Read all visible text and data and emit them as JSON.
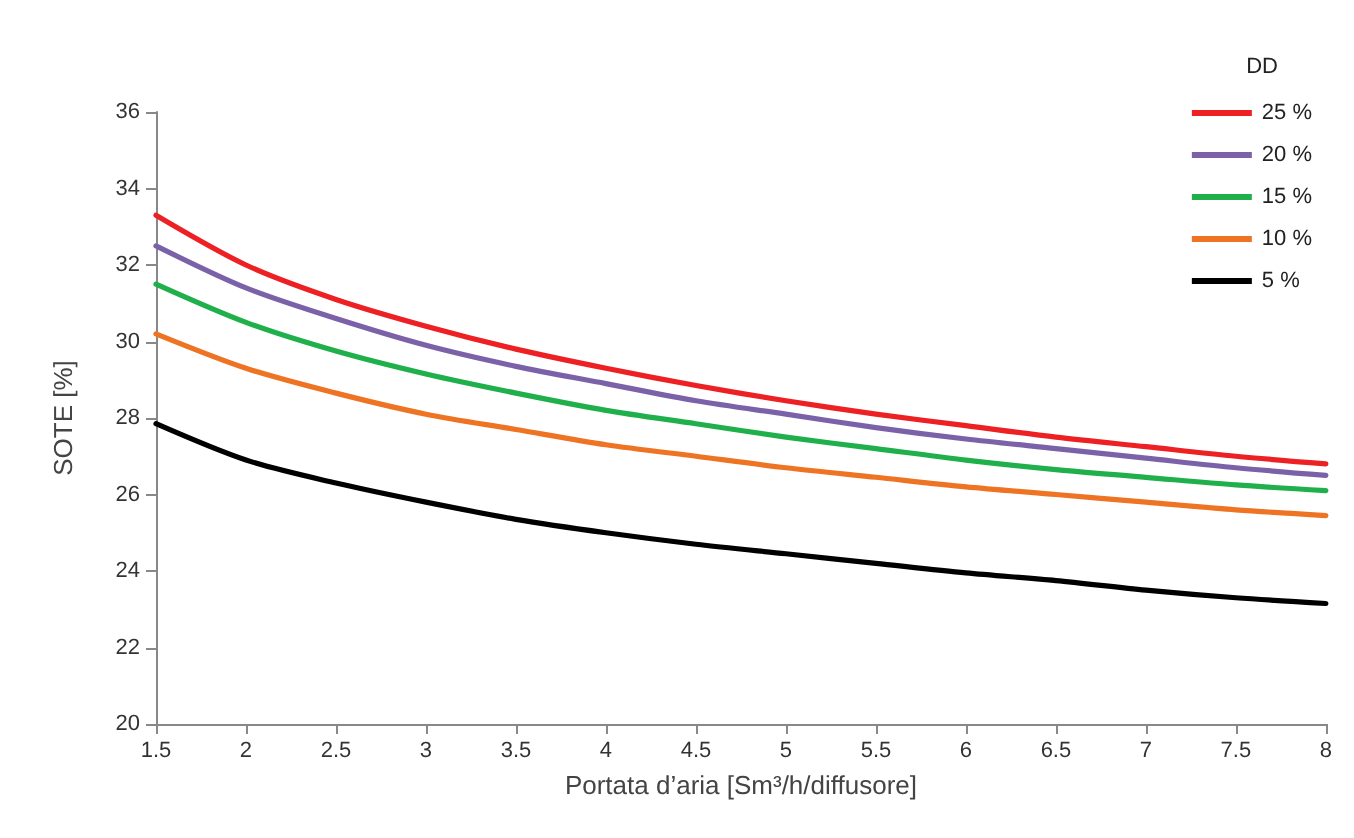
{
  "chart_data": {
    "type": "line",
    "xlabel": "Portata d’aria [Sm³/h/diffusore]",
    "ylabel": "SOTE [%]",
    "legend_title": "DD",
    "legend": "top right",
    "grid": false,
    "marker": "none",
    "line_style": "solid",
    "x": [
      1.5,
      2,
      2.5,
      3,
      3.5,
      4,
      4.5,
      5,
      5.5,
      6,
      6.5,
      7,
      7.5,
      8
    ],
    "xlim": [
      1.5,
      8
    ],
    "xticks": [
      1.5,
      2,
      2.5,
      3,
      3.5,
      4,
      4.5,
      5,
      5.5,
      6,
      6.5,
      7,
      7.5,
      8
    ],
    "ylim": [
      20,
      36
    ],
    "yticks": [
      20,
      22,
      24,
      26,
      28,
      30,
      32,
      34,
      36
    ],
    "series": [
      {
        "name": "25 %",
        "color": "#ed2024",
        "values": [
          33.3,
          32.0,
          31.1,
          30.4,
          29.8,
          29.3,
          28.85,
          28.45,
          28.1,
          27.8,
          27.5,
          27.25,
          27.0,
          26.8
        ]
      },
      {
        "name": "20 %",
        "color": "#7b62a8",
        "values": [
          32.5,
          31.4,
          30.6,
          29.9,
          29.35,
          28.9,
          28.45,
          28.1,
          27.75,
          27.45,
          27.2,
          26.95,
          26.7,
          26.5
        ]
      },
      {
        "name": "15 %",
        "color": "#1fb04b",
        "values": [
          31.5,
          30.5,
          29.75,
          29.15,
          28.65,
          28.2,
          27.85,
          27.5,
          27.2,
          26.9,
          26.65,
          26.45,
          26.25,
          26.1
        ]
      },
      {
        "name": "10 %",
        "color": "#ee7424",
        "values": [
          30.2,
          29.3,
          28.65,
          28.1,
          27.7,
          27.3,
          27.0,
          26.7,
          26.45,
          26.2,
          26.0,
          25.8,
          25.6,
          25.45
        ]
      },
      {
        "name": "5 %",
        "color": "#000000",
        "values": [
          27.85,
          26.9,
          26.3,
          25.8,
          25.35,
          25.0,
          24.7,
          24.45,
          24.2,
          23.95,
          23.75,
          23.5,
          23.3,
          23.15
        ]
      }
    ]
  }
}
